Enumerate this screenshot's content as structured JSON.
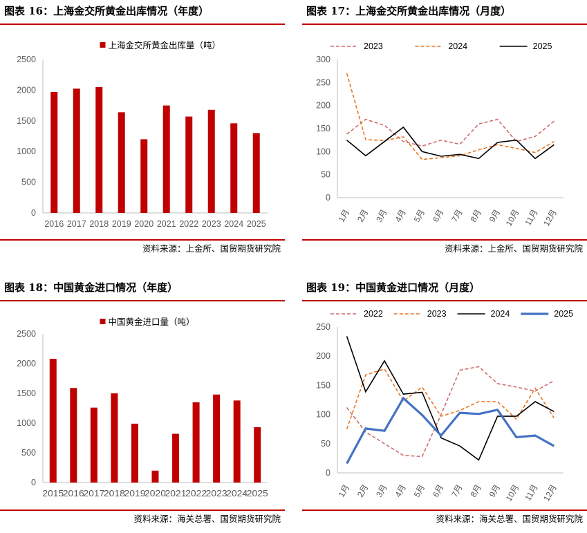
{
  "panels": [
    {
      "title": "图表 16：上海金交所黄金出库情况（年度）",
      "source": "资料来源：上金所、国贸期货研究院",
      "chart_data": {
        "type": "bar",
        "categories": [
          "2016",
          "2017",
          "2018",
          "2019",
          "2020",
          "2021",
          "2022",
          "2023",
          "2024",
          "2025"
        ],
        "series": [
          {
            "name": "上海金交所黄金出库量（吨）",
            "values": [
              1970,
              2025,
              2050,
              1640,
              1200,
              1750,
              1570,
              1680,
              1460,
              1300
            ],
            "color": "#c00000"
          }
        ],
        "ylim": [
          0,
          2500
        ],
        "yticks": [
          0,
          500,
          1000,
          1500,
          2000,
          2500
        ],
        "legend": "top"
      }
    },
    {
      "title": "图表 17：上海金交所黄金出库情况（月度）",
      "source": "资料来源：上金所、国贸期货研究院",
      "chart_data": {
        "type": "line",
        "categories": [
          "1月",
          "2月",
          "3月",
          "4月",
          "5月",
          "6月",
          "7月",
          "8月",
          "9月",
          "10月",
          "11月",
          "12月"
        ],
        "series": [
          {
            "name": "2023",
            "values": [
              138,
              170,
              157,
              122,
              112,
              125,
              116,
              160,
              170,
              122,
              133,
              166
            ],
            "color": "#d06b6b",
            "dash": "dashed"
          },
          {
            "name": "2024",
            "values": [
              270,
              126,
              124,
              132,
              83,
              87,
              91,
              104,
              115,
              107,
              98,
              122
            ],
            "color": "#e87722",
            "dash": "dashed"
          },
          {
            "name": "2025",
            "values": [
              125,
              91,
              122,
              153,
              100,
              90,
              94,
              85,
              120,
              125,
              85,
              115
            ],
            "color": "#000000",
            "dash": "solid"
          }
        ],
        "ylim": [
          0,
          300
        ],
        "yticks": [
          0,
          50,
          100,
          150,
          200,
          250,
          300
        ],
        "legend": "top"
      }
    },
    {
      "title": "图表 18：中国黄金进口情况（年度）",
      "source": "资料来源：海关总署、国贸期货研究院",
      "chart_data": {
        "type": "bar",
        "categories": [
          "2015",
          "2016",
          "2017",
          "2018",
          "2019",
          "2020",
          "2021",
          "2022",
          "2023",
          "2024",
          "2025"
        ],
        "series": [
          {
            "name": "中国黄金进口量（吨）",
            "values": [
              2080,
              1590,
              1260,
              1500,
              990,
              200,
              820,
              1350,
              1480,
              1380,
              930
            ],
            "color": "#c00000"
          }
        ],
        "ylim": [
          0,
          2500
        ],
        "yticks": [
          0,
          500,
          1000,
          1500,
          2000,
          2500
        ],
        "legend": "top"
      }
    },
    {
      "title": "图表 19：中国黄金进口情况（月度）",
      "source": "资料来源：海关总署、国贸期货研究院",
      "chart_data": {
        "type": "line",
        "categories": [
          "1月",
          "2月",
          "3月",
          "4月",
          "5月",
          "6月",
          "7月",
          "8月",
          "9月",
          "10月",
          "11月",
          "12月"
        ],
        "series": [
          {
            "name": "2022",
            "values": [
              112,
              70,
              50,
              30,
              28,
              100,
              176,
              182,
              153,
              147,
              140,
              158
            ],
            "color": "#d06b6b",
            "dash": "dashed"
          },
          {
            "name": "2023",
            "values": [
              75,
              168,
              178,
              123,
              147,
              97,
              107,
              122,
              122,
              92,
              145,
              94
            ],
            "color": "#e87722",
            "dash": "dashed"
          },
          {
            "name": "2024",
            "values": [
              234,
              139,
              192,
              135,
              138,
              60,
              46,
              22,
              97,
              97,
              122,
              105
            ],
            "color": "#000000",
            "dash": "solid"
          },
          {
            "name": "2025",
            "values": [
              16,
              76,
              72,
              128,
              99,
              64,
              103,
              101,
              108,
              61,
              64,
              46
            ],
            "color": "#4472c4",
            "dash": "thick"
          }
        ],
        "ylim": [
          0,
          250
        ],
        "yticks": [
          0,
          50,
          100,
          150,
          200,
          250
        ],
        "legend": "top"
      }
    }
  ]
}
